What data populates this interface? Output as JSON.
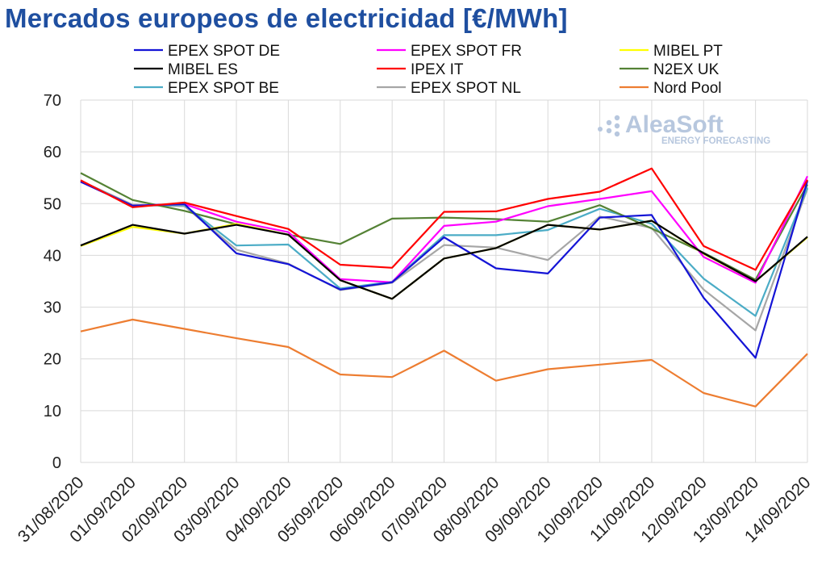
{
  "chart_data": {
    "type": "line",
    "title": "Mercados europeos de electricidad [€/MWh]",
    "categories": [
      "31/08/2020",
      "01/09/2020",
      "02/09/2020",
      "03/09/2020",
      "04/09/2020",
      "05/09/2020",
      "06/09/2020",
      "07/09/2020",
      "08/09/2020",
      "09/09/2020",
      "10/09/2020",
      "11/09/2020",
      "12/09/2020",
      "13/09/2020",
      "14/09/2020"
    ],
    "ylim": [
      0,
      70
    ],
    "yticks": [
      0,
      10,
      20,
      30,
      40,
      50,
      60,
      70
    ],
    "ytick_labels": [
      "0",
      "10",
      "20",
      "30",
      "40",
      "50",
      "60",
      "70"
    ],
    "grid": true,
    "legend_position": "top",
    "series": [
      {
        "name": "EPEX SPOT DE",
        "color": "#1414d6",
        "values": [
          54.2,
          49.6,
          49.9,
          40.4,
          38.3,
          33.4,
          34.8,
          43.5,
          37.5,
          36.5,
          47.3,
          47.8,
          31.8,
          20.2,
          54.4
        ]
      },
      {
        "name": "EPEX SPOT FR",
        "color": "#ff00ff",
        "values": [
          54.2,
          49.6,
          49.9,
          46.5,
          44.5,
          35.4,
          34.8,
          45.7,
          46.5,
          49.5,
          50.9,
          52.4,
          39.7,
          34.7,
          55.3
        ]
      },
      {
        "name": "MIBEL PT",
        "color": "#ffff00",
        "values": [
          41.8,
          45.5,
          44.2,
          46.1,
          44.0,
          35.2,
          31.6,
          39.4,
          41.4,
          45.9,
          45.0,
          46.7,
          40.3,
          35.0,
          43.5
        ]
      },
      {
        "name": "MIBEL ES",
        "color": "#000000",
        "values": [
          41.9,
          45.9,
          44.2,
          45.9,
          44.0,
          35.2,
          31.6,
          39.4,
          41.4,
          45.9,
          45.0,
          46.7,
          40.4,
          35.0,
          43.6
        ]
      },
      {
        "name": "IPEX IT",
        "color": "#ff0000",
        "values": [
          54.5,
          49.3,
          50.2,
          47.6,
          45.1,
          38.2,
          37.6,
          48.4,
          48.5,
          50.9,
          52.3,
          56.8,
          41.8,
          37.2,
          54.6
        ]
      },
      {
        "name": "N2EX UK",
        "color": "#548235",
        "values": [
          55.9,
          50.7,
          48.6,
          46.0,
          44.0,
          42.2,
          47.1,
          47.3,
          47.0,
          46.5,
          49.7,
          45.2,
          40.5,
          35.3,
          53.7
        ]
      },
      {
        "name": "EPEX SPOT BE",
        "color": "#4bacc6",
        "values": [
          54.4,
          49.6,
          49.7,
          41.9,
          42.1,
          33.6,
          34.9,
          43.9,
          43.9,
          44.9,
          49.0,
          46.1,
          35.5,
          28.3,
          53.1
        ]
      },
      {
        "name": "EPEX SPOT NL",
        "color": "#a6a6a6",
        "values": [
          54.4,
          49.8,
          49.5,
          41.1,
          38.4,
          33.3,
          34.7,
          42.0,
          41.5,
          39.1,
          47.5,
          45.3,
          33.4,
          25.5,
          52.9
        ]
      },
      {
        "name": "Nord Pool",
        "color": "#ed7d31",
        "values": [
          25.3,
          27.6,
          25.8,
          24.0,
          22.3,
          17.0,
          16.5,
          21.6,
          15.8,
          18.0,
          18.9,
          19.8,
          13.4,
          10.8,
          21.0
        ]
      }
    ]
  },
  "logo": {
    "name": "AleaSoft",
    "tagline": "ENERGY FORECASTING",
    "color": "#b7c7de"
  }
}
